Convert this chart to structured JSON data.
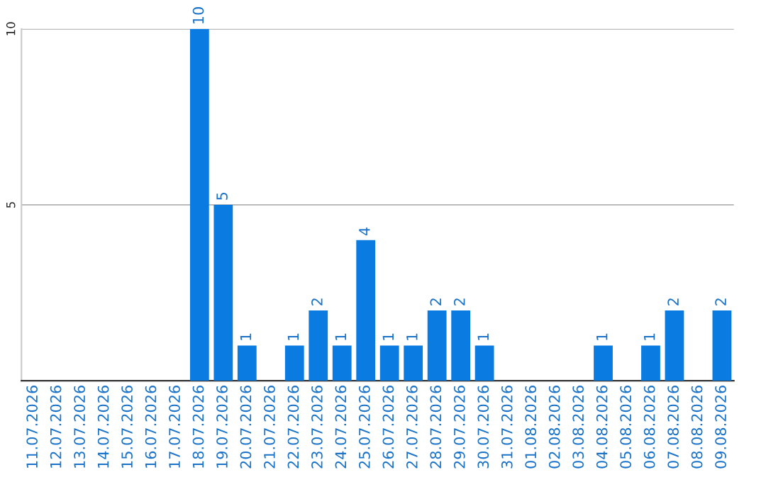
{
  "chart_data": {
    "type": "bar",
    "categories": [
      "11.07.2026",
      "12.07.2026",
      "13.07.2026",
      "14.07.2026",
      "15.07.2026",
      "16.07.2026",
      "17.07.2026",
      "18.07.2026",
      "19.07.2026",
      "20.07.2026",
      "21.07.2026",
      "22.07.2026",
      "23.07.2026",
      "24.07.2026",
      "25.07.2026",
      "26.07.2026",
      "27.07.2026",
      "28.07.2026",
      "29.07.2026",
      "30.07.2026",
      "31.07.2026",
      "01.08.2026",
      "02.08.2026",
      "03.08.2026",
      "04.08.2026",
      "05.08.2026",
      "06.08.2026",
      "07.08.2026",
      "08.08.2026",
      "09.08.2026"
    ],
    "values": [
      0,
      0,
      0,
      0,
      0,
      0,
      0,
      10,
      5,
      1,
      0,
      1,
      2,
      1,
      4,
      1,
      1,
      2,
      2,
      1,
      0,
      0,
      0,
      0,
      1,
      0,
      1,
      2,
      0,
      2
    ],
    "value_labels": [
      null,
      null,
      null,
      null,
      null,
      null,
      null,
      "10",
      "5",
      "1",
      null,
      "1",
      "2",
      "1",
      "4",
      "1",
      "1",
      "2",
      "2",
      "1",
      null,
      null,
      null,
      null,
      "1",
      null,
      "1",
      "2",
      null,
      "2"
    ],
    "color": "#0a7be0",
    "ylim": [
      0,
      10
    ],
    "yticks": [
      5,
      10
    ],
    "grid": "y",
    "legend": false
  }
}
